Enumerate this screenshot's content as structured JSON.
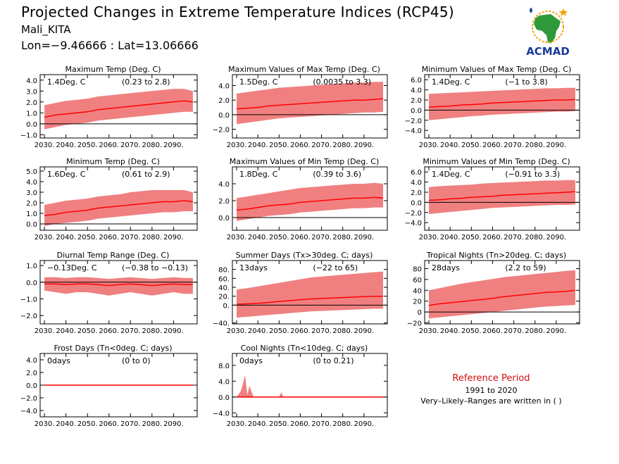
{
  "header": {
    "title": "Projected Changes in Extreme Temperature Indices (RCP45)",
    "station": "Mali_KITA",
    "coords": "Lon=−9.46666 : Lat=13.06666"
  },
  "logo": {
    "text": "ACMAD",
    "icon": "acmad-africa-logo-icon"
  },
  "reference": {
    "title": "Reference Period",
    "years": "1991 to 2020",
    "note": "Very–Likely–Ranges are written in ( )"
  },
  "colors": {
    "band": "#f08080",
    "line": "#ff0000",
    "zero": "#000000"
  },
  "chart_data": [
    {
      "type": "line",
      "title": "Maximum Temp (Deg. C)",
      "mean_label": "1.4Deg. C",
      "range_label": "(0.23 to 2.8)",
      "ylim": [
        -1.3,
        4.5
      ],
      "yticks": [
        -1,
        0,
        1,
        2,
        3,
        4
      ],
      "ytick_labels": [
        "−1.0",
        "0.0",
        "1.0",
        "2.0",
        "3.0",
        "4.0"
      ],
      "x": [
        2030,
        2035,
        2040,
        2045,
        2050,
        2055,
        2060,
        2065,
        2070,
        2075,
        2080,
        2085,
        2090,
        2095,
        2099
      ],
      "y": [
        0.6,
        0.8,
        0.9,
        1.0,
        1.1,
        1.3,
        1.4,
        1.5,
        1.6,
        1.7,
        1.8,
        1.9,
        2.0,
        2.1,
        2.0
      ],
      "low": [
        -0.5,
        -0.3,
        -0.1,
        0.0,
        0.1,
        0.3,
        0.4,
        0.5,
        0.6,
        0.7,
        0.8,
        0.9,
        1.0,
        1.1,
        1.1
      ],
      "high": [
        1.7,
        1.9,
        2.1,
        2.2,
        2.3,
        2.5,
        2.6,
        2.7,
        2.8,
        2.9,
        3.0,
        3.1,
        3.2,
        3.2,
        3.0
      ],
      "xticks": [
        2030,
        2040,
        2050,
        2060,
        2070,
        2080,
        2090
      ],
      "xtick_labels": [
        "2030.",
        "2040.",
        "2050.",
        "2060.",
        "2070.",
        "2080.",
        "2090."
      ]
    },
    {
      "type": "line",
      "title": "Maximum Values of Max Temp (Deg. C)",
      "mean_label": "1.5Deg. C",
      "range_label": "(0.0035 to 3.3)",
      "ylim": [
        -3.2,
        5.5
      ],
      "yticks": [
        -2,
        0,
        2,
        4
      ],
      "ytick_labels": [
        "−2.0",
        "0.0",
        "2.0",
        "4.0"
      ],
      "x": [
        2030,
        2035,
        2040,
        2045,
        2050,
        2055,
        2060,
        2065,
        2070,
        2075,
        2080,
        2085,
        2090,
        2095,
        2099
      ],
      "y": [
        0.8,
        0.9,
        1.0,
        1.2,
        1.3,
        1.4,
        1.5,
        1.6,
        1.7,
        1.8,
        1.9,
        2.0,
        2.0,
        2.1,
        2.2
      ],
      "low": [
        -1.3,
        -1.1,
        -0.9,
        -0.7,
        -0.5,
        -0.4,
        -0.3,
        -0.2,
        -0.1,
        0.0,
        0.1,
        0.2,
        0.3,
        0.3,
        0.4
      ],
      "high": [
        2.9,
        3.1,
        3.3,
        3.5,
        3.7,
        3.8,
        3.9,
        4.0,
        4.1,
        4.2,
        4.3,
        4.4,
        4.4,
        4.5,
        4.5
      ],
      "xticks": [
        2030,
        2040,
        2050,
        2060,
        2070,
        2080,
        2090
      ],
      "xtick_labels": [
        "2030.",
        "2040.",
        "2050.",
        "2060.",
        "2070.",
        "2080.",
        "2090."
      ]
    },
    {
      "type": "line",
      "title": "Minimum Values of Max Temp (Deg. C)",
      "mean_label": "1.4Deg. C",
      "range_label": "(−1 to 3.8)",
      "ylim": [
        -5.5,
        7.0
      ],
      "yticks": [
        -4,
        -2,
        0,
        2,
        4,
        6
      ],
      "ytick_labels": [
        "−4.0",
        "−2.0",
        "0.0",
        "2.0",
        "4.0",
        "6.0"
      ],
      "x": [
        2030,
        2035,
        2040,
        2045,
        2050,
        2055,
        2060,
        2065,
        2070,
        2075,
        2080,
        2085,
        2090,
        2095,
        2099
      ],
      "y": [
        0.6,
        0.7,
        0.8,
        1.0,
        1.1,
        1.2,
        1.4,
        1.5,
        1.6,
        1.7,
        1.8,
        1.9,
        2.0,
        2.0,
        2.1
      ],
      "low": [
        -2.0,
        -1.8,
        -1.6,
        -1.4,
        -1.2,
        -1.1,
        -0.9,
        -0.8,
        -0.7,
        -0.6,
        -0.5,
        -0.4,
        -0.3,
        -0.3,
        -0.2
      ],
      "high": [
        3.2,
        3.3,
        3.4,
        3.5,
        3.6,
        3.7,
        3.8,
        3.9,
        4.0,
        4.1,
        4.2,
        4.3,
        4.3,
        4.4,
        4.4
      ],
      "xticks": [
        2030,
        2040,
        2050,
        2060,
        2070,
        2080,
        2090
      ],
      "xtick_labels": [
        "2030.",
        "2040.",
        "2050.",
        "2060.",
        "2070.",
        "2080.",
        "2090."
      ]
    },
    {
      "type": "line",
      "title": "Minimum Temp (Deg. C)",
      "mean_label": "1.6Deg. C",
      "range_label": "(0.61 to 2.9)",
      "ylim": [
        -0.6,
        5.4
      ],
      "yticks": [
        0,
        1,
        2,
        3,
        4,
        5
      ],
      "ytick_labels": [
        "0.0",
        "1.0",
        "2.0",
        "3.0",
        "4.0",
        "5.0"
      ],
      "x": [
        2030,
        2035,
        2040,
        2045,
        2050,
        2055,
        2060,
        2065,
        2070,
        2075,
        2080,
        2085,
        2090,
        2095,
        2099
      ],
      "y": [
        0.8,
        0.9,
        1.1,
        1.2,
        1.3,
        1.5,
        1.6,
        1.7,
        1.8,
        1.9,
        2.0,
        2.1,
        2.1,
        2.2,
        2.1
      ],
      "low": [
        -0.2,
        0.0,
        0.1,
        0.2,
        0.3,
        0.5,
        0.6,
        0.7,
        0.8,
        0.9,
        1.0,
        1.1,
        1.1,
        1.2,
        1.2
      ],
      "high": [
        1.8,
        2.0,
        2.2,
        2.3,
        2.4,
        2.6,
        2.7,
        2.8,
        3.0,
        3.1,
        3.2,
        3.2,
        3.2,
        3.2,
        3.0
      ],
      "xticks": [
        2030,
        2040,
        2050,
        2060,
        2070,
        2080,
        2090
      ],
      "xtick_labels": [
        "2030.",
        "2040.",
        "2050.",
        "2060.",
        "2070.",
        "2080.",
        "2090."
      ]
    },
    {
      "type": "line",
      "title": "Maximum Values of Min Temp (Deg. C)",
      "mean_label": "1.8Deg. C",
      "range_label": "(0.39 to 3.6)",
      "ylim": [
        -1.5,
        6.0
      ],
      "yticks": [
        0,
        2,
        4
      ],
      "ytick_labels": [
        "0.0",
        "2.0",
        "4.0"
      ],
      "x": [
        2030,
        2035,
        2040,
        2045,
        2050,
        2055,
        2060,
        2065,
        2070,
        2075,
        2080,
        2085,
        2090,
        2095,
        2099
      ],
      "y": [
        0.9,
        1.0,
        1.2,
        1.4,
        1.5,
        1.6,
        1.8,
        1.9,
        2.0,
        2.1,
        2.2,
        2.3,
        2.3,
        2.4,
        2.3
      ],
      "low": [
        -0.4,
        -0.2,
        0.0,
        0.2,
        0.3,
        0.4,
        0.6,
        0.7,
        0.8,
        0.9,
        1.0,
        1.1,
        1.1,
        1.2,
        1.2
      ],
      "high": [
        2.3,
        2.5,
        2.7,
        2.9,
        3.1,
        3.3,
        3.5,
        3.6,
        3.7,
        3.8,
        3.9,
        4.0,
        4.0,
        4.1,
        4.0
      ],
      "xticks": [
        2030,
        2040,
        2050,
        2060,
        2070,
        2080,
        2090
      ],
      "xtick_labels": [
        "2030.",
        "2040.",
        "2050.",
        "2060.",
        "2070.",
        "2080.",
        "2090."
      ]
    },
    {
      "type": "line",
      "title": "Minimum Values of Min Temp (Deg. C)",
      "mean_label": "1.4Deg. C",
      "range_label": "(−0.91 to 3.3)",
      "ylim": [
        -5.5,
        7.0
      ],
      "yticks": [
        -4,
        -2,
        0,
        2,
        4,
        6
      ],
      "ytick_labels": [
        "−4.0",
        "−2.0",
        "0.0",
        "2.0",
        "4.0",
        "6.0"
      ],
      "x": [
        2030,
        2035,
        2040,
        2045,
        2050,
        2055,
        2060,
        2065,
        2070,
        2075,
        2080,
        2085,
        2090,
        2095,
        2099
      ],
      "y": [
        0.4,
        0.5,
        0.7,
        0.8,
        1.0,
        1.1,
        1.2,
        1.4,
        1.5,
        1.6,
        1.7,
        1.8,
        1.9,
        2.0,
        2.1
      ],
      "low": [
        -2.3,
        -2.1,
        -1.9,
        -1.7,
        -1.5,
        -1.3,
        -1.1,
        -1.0,
        -0.9,
        -0.8,
        -0.7,
        -0.6,
        -0.5,
        -0.5,
        -0.4
      ],
      "high": [
        3.0,
        3.2,
        3.3,
        3.4,
        3.5,
        3.7,
        3.8,
        3.9,
        4.0,
        4.1,
        4.2,
        4.3,
        4.3,
        4.4,
        4.4
      ],
      "xticks": [
        2030,
        2040,
        2050,
        2060,
        2070,
        2080,
        2090
      ],
      "xtick_labels": [
        "2030.",
        "2040.",
        "2050.",
        "2060.",
        "2070.",
        "2080.",
        "2090."
      ]
    },
    {
      "type": "line",
      "title": "Diurnal Temp Range (Deg. C)",
      "mean_label": "−0.13Deg. C",
      "range_label": "(−0.38 to −0.13)",
      "ylim": [
        -2.5,
        1.3
      ],
      "yticks": [
        -2,
        -1,
        0,
        1
      ],
      "ytick_labels": [
        "−2.0",
        "−1.0",
        "0.0",
        "1.0"
      ],
      "x": [
        2030,
        2035,
        2040,
        2045,
        2050,
        2055,
        2060,
        2065,
        2070,
        2075,
        2080,
        2085,
        2090,
        2095,
        2099
      ],
      "y": [
        -0.1,
        -0.1,
        -0.15,
        -0.1,
        -0.1,
        -0.15,
        -0.2,
        -0.15,
        -0.1,
        -0.15,
        -0.2,
        -0.15,
        -0.1,
        -0.15,
        -0.15
      ],
      "low": [
        -0.5,
        -0.6,
        -0.7,
        -0.6,
        -0.6,
        -0.7,
        -0.8,
        -0.7,
        -0.6,
        -0.7,
        -0.8,
        -0.7,
        -0.6,
        -0.7,
        -0.7
      ],
      "high": [
        0.3,
        0.3,
        0.25,
        0.3,
        0.3,
        0.25,
        0.2,
        0.25,
        0.3,
        0.25,
        0.2,
        0.25,
        0.3,
        0.25,
        0.25
      ],
      "xticks": [
        2030,
        2040,
        2050,
        2060,
        2070,
        2080,
        2090
      ],
      "xtick_labels": [
        "2030.",
        "2040.",
        "2050.",
        "2060.",
        "2070.",
        "2080.",
        "2090."
      ]
    },
    {
      "type": "line",
      "title": "Summer Days (Tx>30deg. C; days)",
      "mean_label": "13days",
      "range_label": "(−22 to 65)",
      "ylim": [
        -42,
        100
      ],
      "yticks": [
        -40,
        0,
        20,
        40,
        60,
        80
      ],
      "ytick_labels": [
        "−40.",
        "0.",
        "20.",
        "40.",
        "60.",
        "80."
      ],
      "x": [
        2030,
        2035,
        2040,
        2045,
        2050,
        2055,
        2060,
        2065,
        2070,
        2075,
        2080,
        2085,
        2090,
        2095,
        2099
      ],
      "y": [
        2,
        3,
        4,
        6,
        8,
        10,
        12,
        14,
        15,
        16,
        17,
        18,
        19,
        20,
        20
      ],
      "low": [
        -28,
        -26,
        -24,
        -22,
        -20,
        -18,
        -16,
        -14,
        -13,
        -12,
        -11,
        -10,
        -9,
        -8,
        -8
      ],
      "high": [
        35,
        38,
        42,
        46,
        50,
        54,
        58,
        62,
        64,
        66,
        68,
        70,
        72,
        74,
        75
      ],
      "xticks": [
        2030,
        2040,
        2050,
        2060,
        2070,
        2080,
        2090
      ],
      "xtick_labels": [
        "2030.",
        "2040.",
        "2050.",
        "2060.",
        "2070.",
        "2080.",
        "2090."
      ]
    },
    {
      "type": "line",
      "title": "Tropical Nights (Tn>20deg. C; days)",
      "mean_label": "28days",
      "range_label": "(2.2 to 59)",
      "ylim": [
        -22,
        95
      ],
      "yticks": [
        -20,
        0,
        20,
        40,
        60,
        80
      ],
      "ytick_labels": [
        "−20",
        "0",
        "20",
        "40",
        "60",
        "80"
      ],
      "x": [
        2030,
        2035,
        2040,
        2045,
        2050,
        2055,
        2060,
        2065,
        2070,
        2075,
        2080,
        2085,
        2090,
        2095,
        2099
      ],
      "y": [
        12,
        15,
        17,
        19,
        21,
        23,
        25,
        28,
        30,
        32,
        34,
        36,
        37,
        38,
        40
      ],
      "low": [
        -12,
        -10,
        -8,
        -6,
        -4,
        -2,
        0,
        2,
        4,
        6,
        8,
        10,
        11,
        12,
        13
      ],
      "high": [
        40,
        44,
        48,
        52,
        55,
        58,
        61,
        64,
        66,
        68,
        70,
        72,
        74,
        76,
        77
      ],
      "xticks": [
        2030,
        2040,
        2050,
        2060,
        2070,
        2080,
        2090
      ],
      "xtick_labels": [
        "2030.",
        "2040.",
        "2050.",
        "2060.",
        "2070.",
        "2080.",
        "2090."
      ]
    },
    {
      "type": "line",
      "title": "Frost Days (Tn<0deg. C; days)",
      "mean_label": "0days",
      "range_label": "(0 to 0)",
      "ylim": [
        -5,
        5
      ],
      "yticks": [
        -4,
        -2,
        0,
        2,
        4
      ],
      "ytick_labels": [
        "−4.0",
        "−2.0",
        "0.0",
        "2.0",
        "4.0"
      ],
      "x": [
        2030,
        2099
      ],
      "y": [
        0,
        0
      ],
      "low": [
        0,
        0
      ],
      "high": [
        0,
        0
      ],
      "xticks": [
        2030,
        2040,
        2050,
        2060,
        2070,
        2080,
        2090
      ],
      "xtick_labels": [
        "2030.",
        "2040.",
        "2050.",
        "2060.",
        "2070.",
        "2080.",
        "2090."
      ]
    },
    {
      "type": "line",
      "title": "Cool Nights (Tn<10deg. C; days)",
      "mean_label": "0days",
      "range_label": "(0 to 0.21)",
      "ylim": [
        -5,
        11
      ],
      "yticks": [
        -4,
        0,
        4,
        8
      ],
      "ytick_labels": [
        "−4.0",
        "0.0",
        "4.0",
        "8.0"
      ],
      "x": [
        2030,
        2032,
        2034,
        2035,
        2036,
        2038,
        2050,
        2051,
        2052,
        2099
      ],
      "y": [
        0,
        0,
        0,
        0,
        0,
        0,
        0,
        0,
        0,
        0
      ],
      "low": [
        0,
        0,
        0,
        0,
        0,
        0,
        0,
        0,
        0,
        0
      ],
      "high": [
        0,
        1.5,
        5.5,
        0.5,
        2.8,
        0,
        0,
        1.2,
        0,
        0
      ],
      "xticks": [
        2030,
        2040,
        2050,
        2060,
        2070,
        2080,
        2090
      ],
      "xtick_labels": [
        "2030.",
        "2040.",
        "2050.",
        "2060.",
        "2070.",
        "2080.",
        "2090."
      ]
    }
  ]
}
